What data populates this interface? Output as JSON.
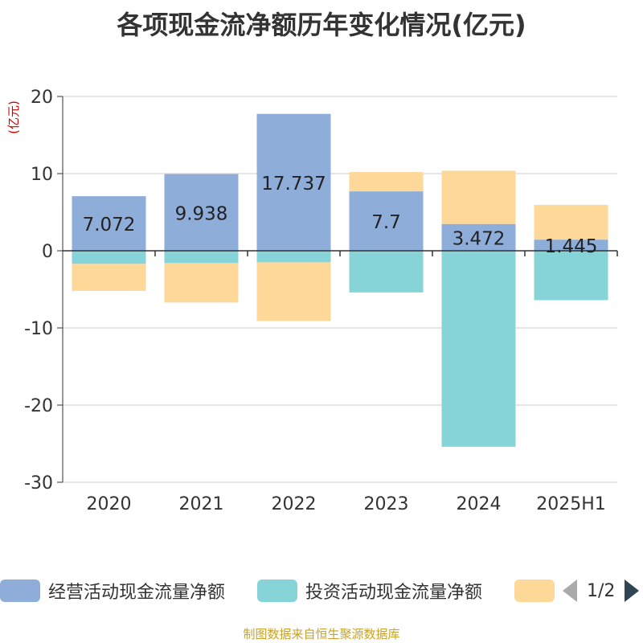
{
  "title": "各项现金流净额历年变化情况(亿元)",
  "source": "制图数据来自恒生聚源数据库",
  "legend": {
    "items": [
      {
        "label": "经营活动现金流量净额",
        "color": "#8eadd9"
      },
      {
        "label": "投资活动现金流量净额",
        "color": "#86d4d8"
      },
      {
        "label": "",
        "color": "#fdd899"
      }
    ],
    "page": "1/2"
  },
  "chart_data": {
    "type": "bar",
    "stacked": true,
    "categories": [
      "2020",
      "2021",
      "2022",
      "2023",
      "2024",
      "2025H1"
    ],
    "series": [
      {
        "name": "经营活动现金流量净额",
        "color": "#8eadd9",
        "values": [
          7.072,
          9.938,
          17.737,
          7.7,
          3.472,
          1.445
        ],
        "labels": [
          "7.072",
          "9.938",
          "17.737",
          "7.7",
          "3.472",
          "1.445"
        ]
      },
      {
        "name": "投资活动现金流量净额",
        "color": "#86d4d8",
        "values": [
          -1.7,
          -1.6,
          -1.5,
          -5.4,
          -25.4,
          -6.4
        ]
      },
      {
        "name": "",
        "color": "#fdd899",
        "values": [
          -3.5,
          -5.1,
          -7.6,
          2.5,
          6.9,
          4.5
        ]
      }
    ],
    "ylabel": "(亿元)",
    "ylim": [
      -30,
      20
    ],
    "yticks": [
      20,
      10,
      0,
      -10,
      -20,
      -30
    ],
    "grid": true,
    "legend_position": "bottom"
  }
}
